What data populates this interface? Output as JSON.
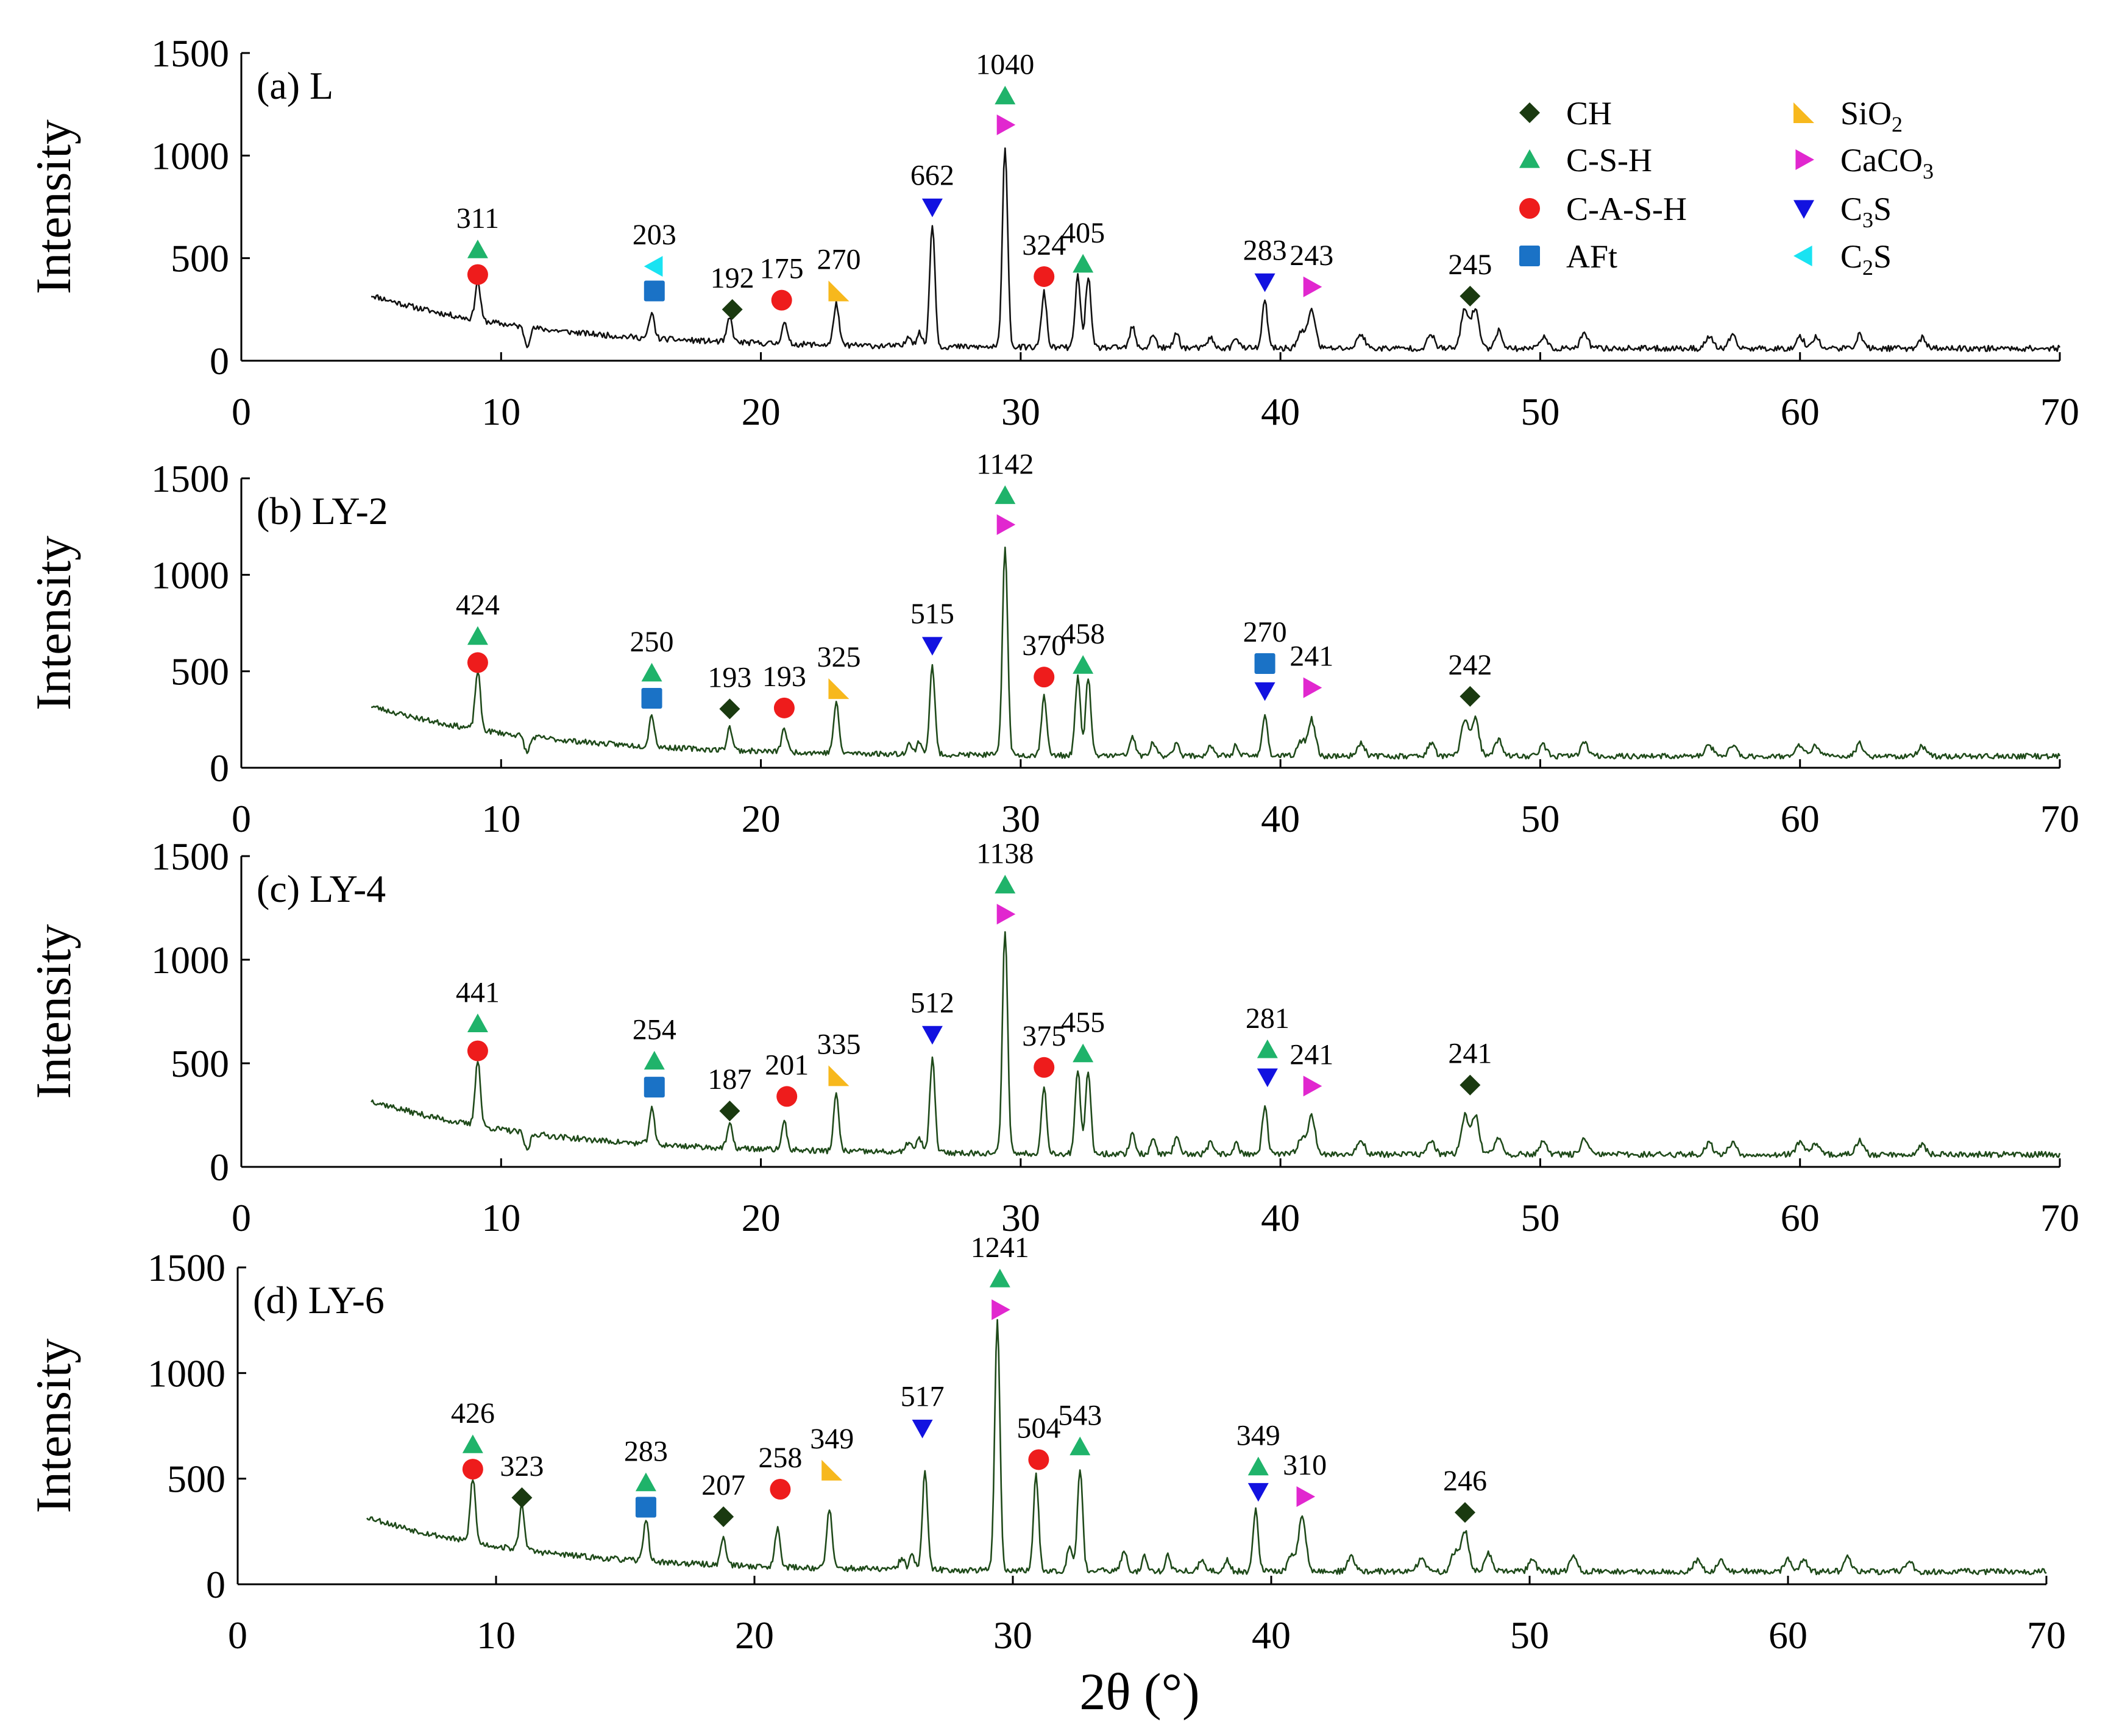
{
  "chart_data": {
    "type": "line",
    "title": "",
    "xlabel": "2θ (°)",
    "x_ticks": [
      0,
      10,
      20,
      30,
      40,
      50,
      60,
      70
    ],
    "xlim": [
      0,
      70
    ],
    "legend": {
      "placement": "top-right of panel (a)",
      "columns": 2,
      "entries": [
        {
          "key": "CH",
          "label": "CH",
          "base": "CH",
          "sub": "",
          "tail": "",
          "marker": "diamond",
          "color": "#1a3a10"
        },
        {
          "key": "CSH",
          "label": "C-S-H",
          "base": "C-S-H",
          "sub": "",
          "tail": "",
          "marker": "triangle-up",
          "color": "#1fb36a"
        },
        {
          "key": "CASH",
          "label": "C-A-S-H",
          "base": "C-A-S-H",
          "sub": "",
          "tail": "",
          "marker": "circle",
          "color": "#ee1c1c"
        },
        {
          "key": "AFt",
          "label": "AFt",
          "base": "AFt",
          "sub": "",
          "tail": "",
          "marker": "square",
          "color": "#1a72c6"
        },
        {
          "key": "SiO2",
          "label": "SiO2",
          "base": "SiO",
          "sub": "2",
          "tail": "",
          "marker": "triangle-corner",
          "color": "#f7b81d"
        },
        {
          "key": "CaCO3",
          "label": "CaCO3",
          "base": "CaCO",
          "sub": "3",
          "tail": "",
          "marker": "triangle-right",
          "color": "#e127cf"
        },
        {
          "key": "C3S",
          "label": "C3S",
          "base": "C",
          "sub": "3",
          "tail": "S",
          "marker": "triangle-down",
          "color": "#1212e0"
        },
        {
          "key": "C2S",
          "label": "C2S",
          "base": "C",
          "sub": "2",
          "tail": "S",
          "marker": "triangle-left",
          "color": "#19e3f2"
        }
      ]
    },
    "panels": [
      {
        "id": "a",
        "title": "(a) L",
        "ylabel": "Intensity",
        "ylim": [
          0,
          1500
        ],
        "y_ticks": [
          0,
          500,
          1000,
          1500
        ],
        "line_color": "#111111",
        "annotations": [
          {
            "x": 9.1,
            "label": "311",
            "markers": [
              {
                "type": "CSH",
                "y": 540
              },
              {
                "type": "CASH",
                "y": 420
              }
            ]
          },
          {
            "x": 15.9,
            "label": "203",
            "markers": [
              {
                "type": "C2S",
                "y": 460
              },
              {
                "type": "AFt",
                "y": 340
              }
            ]
          },
          {
            "x": 18.9,
            "label": "192",
            "markers": [
              {
                "type": "CH",
                "y": 250
              }
            ]
          },
          {
            "x": 20.8,
            "label": "175",
            "markers": [
              {
                "type": "CASH",
                "y": 295
              }
            ]
          },
          {
            "x": 23.0,
            "label": "270",
            "markers": [
              {
                "type": "SiO2",
                "y": 340
              }
            ]
          },
          {
            "x": 26.6,
            "label": "662",
            "markers": [
              {
                "type": "C3S",
                "y": 750
              }
            ]
          },
          {
            "x": 29.4,
            "label": "1040",
            "markers": [
              {
                "type": "CSH",
                "y": 1290
              },
              {
                "type": "CaCO3",
                "y": 1150
              }
            ]
          },
          {
            "x": 30.9,
            "label": "324",
            "markers": [
              {
                "type": "CASH",
                "y": 410
              }
            ]
          },
          {
            "x": 32.4,
            "label": "405",
            "markers": [
              {
                "type": "CSH",
                "y": 470
              }
            ]
          },
          {
            "x": 39.4,
            "label": "283",
            "markers": [
              {
                "type": "C3S",
                "y": 385
              }
            ]
          },
          {
            "x": 41.2,
            "label": "243",
            "markers": [
              {
                "type": "CaCO3",
                "y": 360
              }
            ]
          },
          {
            "x": 47.3,
            "label": "245",
            "markers": [
              {
                "type": "CH",
                "y": 315
              }
            ]
          }
        ]
      },
      {
        "id": "b",
        "title": "(b) LY-2",
        "ylabel": "Intensity",
        "ylim": [
          0,
          1500
        ],
        "y_ticks": [
          0,
          500,
          1000,
          1500
        ],
        "line_color": "#1f4a1a",
        "annotations": [
          {
            "x": 9.1,
            "label": "424",
            "markers": [
              {
                "type": "CSH",
                "y": 680
              },
              {
                "type": "CASH",
                "y": 545
              }
            ]
          },
          {
            "x": 15.8,
            "label": "250",
            "markers": [
              {
                "type": "CSH",
                "y": 490
              },
              {
                "type": "AFt",
                "y": 360
              }
            ]
          },
          {
            "x": 18.8,
            "label": "193",
            "markers": [
              {
                "type": "CH",
                "y": 305
              }
            ]
          },
          {
            "x": 20.9,
            "label": "193",
            "markers": [
              {
                "type": "CASH",
                "y": 310
              }
            ]
          },
          {
            "x": 23.0,
            "label": "325",
            "markers": [
              {
                "type": "SiO2",
                "y": 410
              }
            ]
          },
          {
            "x": 26.6,
            "label": "515",
            "markers": [
              {
                "type": "C3S",
                "y": 635
              }
            ]
          },
          {
            "x": 29.4,
            "label": "1142",
            "markers": [
              {
                "type": "CSH",
                "y": 1410
              },
              {
                "type": "CaCO3",
                "y": 1260
              }
            ]
          },
          {
            "x": 30.9,
            "label": "370",
            "markers": [
              {
                "type": "CASH",
                "y": 470
              }
            ]
          },
          {
            "x": 32.4,
            "label": "458",
            "markers": [
              {
                "type": "CSH",
                "y": 530
              }
            ]
          },
          {
            "x": 39.4,
            "label": "270",
            "markers": [
              {
                "type": "AFt",
                "y": 540
              },
              {
                "type": "C3S",
                "y": 400
              }
            ]
          },
          {
            "x": 41.2,
            "label": "241",
            "markers": [
              {
                "type": "CaCO3",
                "y": 415
              }
            ]
          },
          {
            "x": 47.3,
            "label": "242",
            "markers": [
              {
                "type": "CH",
                "y": 370
              }
            ]
          }
        ]
      },
      {
        "id": "c",
        "title": "(c) LY-4",
        "ylabel": "Intensity",
        "ylim": [
          0,
          1500
        ],
        "y_ticks": [
          0,
          500,
          1000,
          1500
        ],
        "line_color": "#1f4a1a",
        "annotations": [
          {
            "x": 9.1,
            "label": "441",
            "markers": [
              {
                "type": "CSH",
                "y": 690
              },
              {
                "type": "CASH",
                "y": 560
              }
            ]
          },
          {
            "x": 15.9,
            "label": "254",
            "markers": [
              {
                "type": "CSH",
                "y": 510
              },
              {
                "type": "AFt",
                "y": 385
              }
            ]
          },
          {
            "x": 18.8,
            "label": "187",
            "markers": [
              {
                "type": "CH",
                "y": 270
              }
            ]
          },
          {
            "x": 21.0,
            "label": "201",
            "markers": [
              {
                "type": "CASH",
                "y": 340
              }
            ]
          },
          {
            "x": 23.0,
            "label": "335",
            "markers": [
              {
                "type": "SiO2",
                "y": 440
              }
            ]
          },
          {
            "x": 26.6,
            "label": "512",
            "markers": [
              {
                "type": "C3S",
                "y": 640
              }
            ]
          },
          {
            "x": 29.4,
            "label": "1138",
            "markers": [
              {
                "type": "CSH",
                "y": 1360
              },
              {
                "type": "CaCO3",
                "y": 1220
              }
            ]
          },
          {
            "x": 30.9,
            "label": "375",
            "markers": [
              {
                "type": "CASH",
                "y": 480
              }
            ]
          },
          {
            "x": 32.4,
            "label": "455",
            "markers": [
              {
                "type": "CSH",
                "y": 545
              }
            ]
          },
          {
            "x": 39.5,
            "label": "281",
            "markers": [
              {
                "type": "CSH",
                "y": 565
              },
              {
                "type": "C3S",
                "y": 435
              }
            ]
          },
          {
            "x": 41.2,
            "label": "241",
            "markers": [
              {
                "type": "CaCO3",
                "y": 390
              }
            ]
          },
          {
            "x": 47.3,
            "label": "241",
            "markers": [
              {
                "type": "CH",
                "y": 395
              }
            ]
          }
        ]
      },
      {
        "id": "d",
        "title": "(d) LY-6",
        "ylabel": "Intensity",
        "ylim": [
          0,
          1500
        ],
        "y_ticks": [
          0,
          500,
          1000,
          1500
        ],
        "line_color": "#1f4a1a",
        "annotations": [
          {
            "x": 9.1,
            "label": "426",
            "markers": [
              {
                "type": "CSH",
                "y": 660
              },
              {
                "type": "CASH",
                "y": 545
              }
            ]
          },
          {
            "x": 11.0,
            "label": "323",
            "markers": [
              {
                "type": "CH",
                "y": 410
              }
            ]
          },
          {
            "x": 15.8,
            "label": "283",
            "markers": [
              {
                "type": "CSH",
                "y": 480
              },
              {
                "type": "AFt",
                "y": 365
              }
            ]
          },
          {
            "x": 18.8,
            "label": "207",
            "markers": [
              {
                "type": "CH",
                "y": 320
              }
            ]
          },
          {
            "x": 21.0,
            "label": "258",
            "markers": [
              {
                "type": "CASH",
                "y": 450
              }
            ]
          },
          {
            "x": 23.0,
            "label": "349",
            "markers": [
              {
                "type": "SiO2",
                "y": 540
              }
            ]
          },
          {
            "x": 26.5,
            "label": "517",
            "markers": [
              {
                "type": "C3S",
                "y": 740
              }
            ]
          },
          {
            "x": 29.5,
            "label": "1241",
            "markers": [
              {
                "type": "CSH",
                "y": 1445
              },
              {
                "type": "CaCO3",
                "y": 1300
              }
            ]
          },
          {
            "x": 31.0,
            "label": "504",
            "markers": [
              {
                "type": "CASH",
                "y": 590
              }
            ]
          },
          {
            "x": 32.6,
            "label": "543",
            "markers": [
              {
                "type": "CSH",
                "y": 650
              }
            ]
          },
          {
            "x": 39.5,
            "label": "349",
            "markers": [
              {
                "type": "CSH",
                "y": 555
              },
              {
                "type": "C3S",
                "y": 440
              }
            ]
          },
          {
            "x": 41.3,
            "label": "310",
            "markers": [
              {
                "type": "CaCO3",
                "y": 415
              }
            ]
          },
          {
            "x": 47.5,
            "label": "246",
            "markers": [
              {
                "type": "CH",
                "y": 340
              }
            ]
          }
        ]
      }
    ]
  }
}
